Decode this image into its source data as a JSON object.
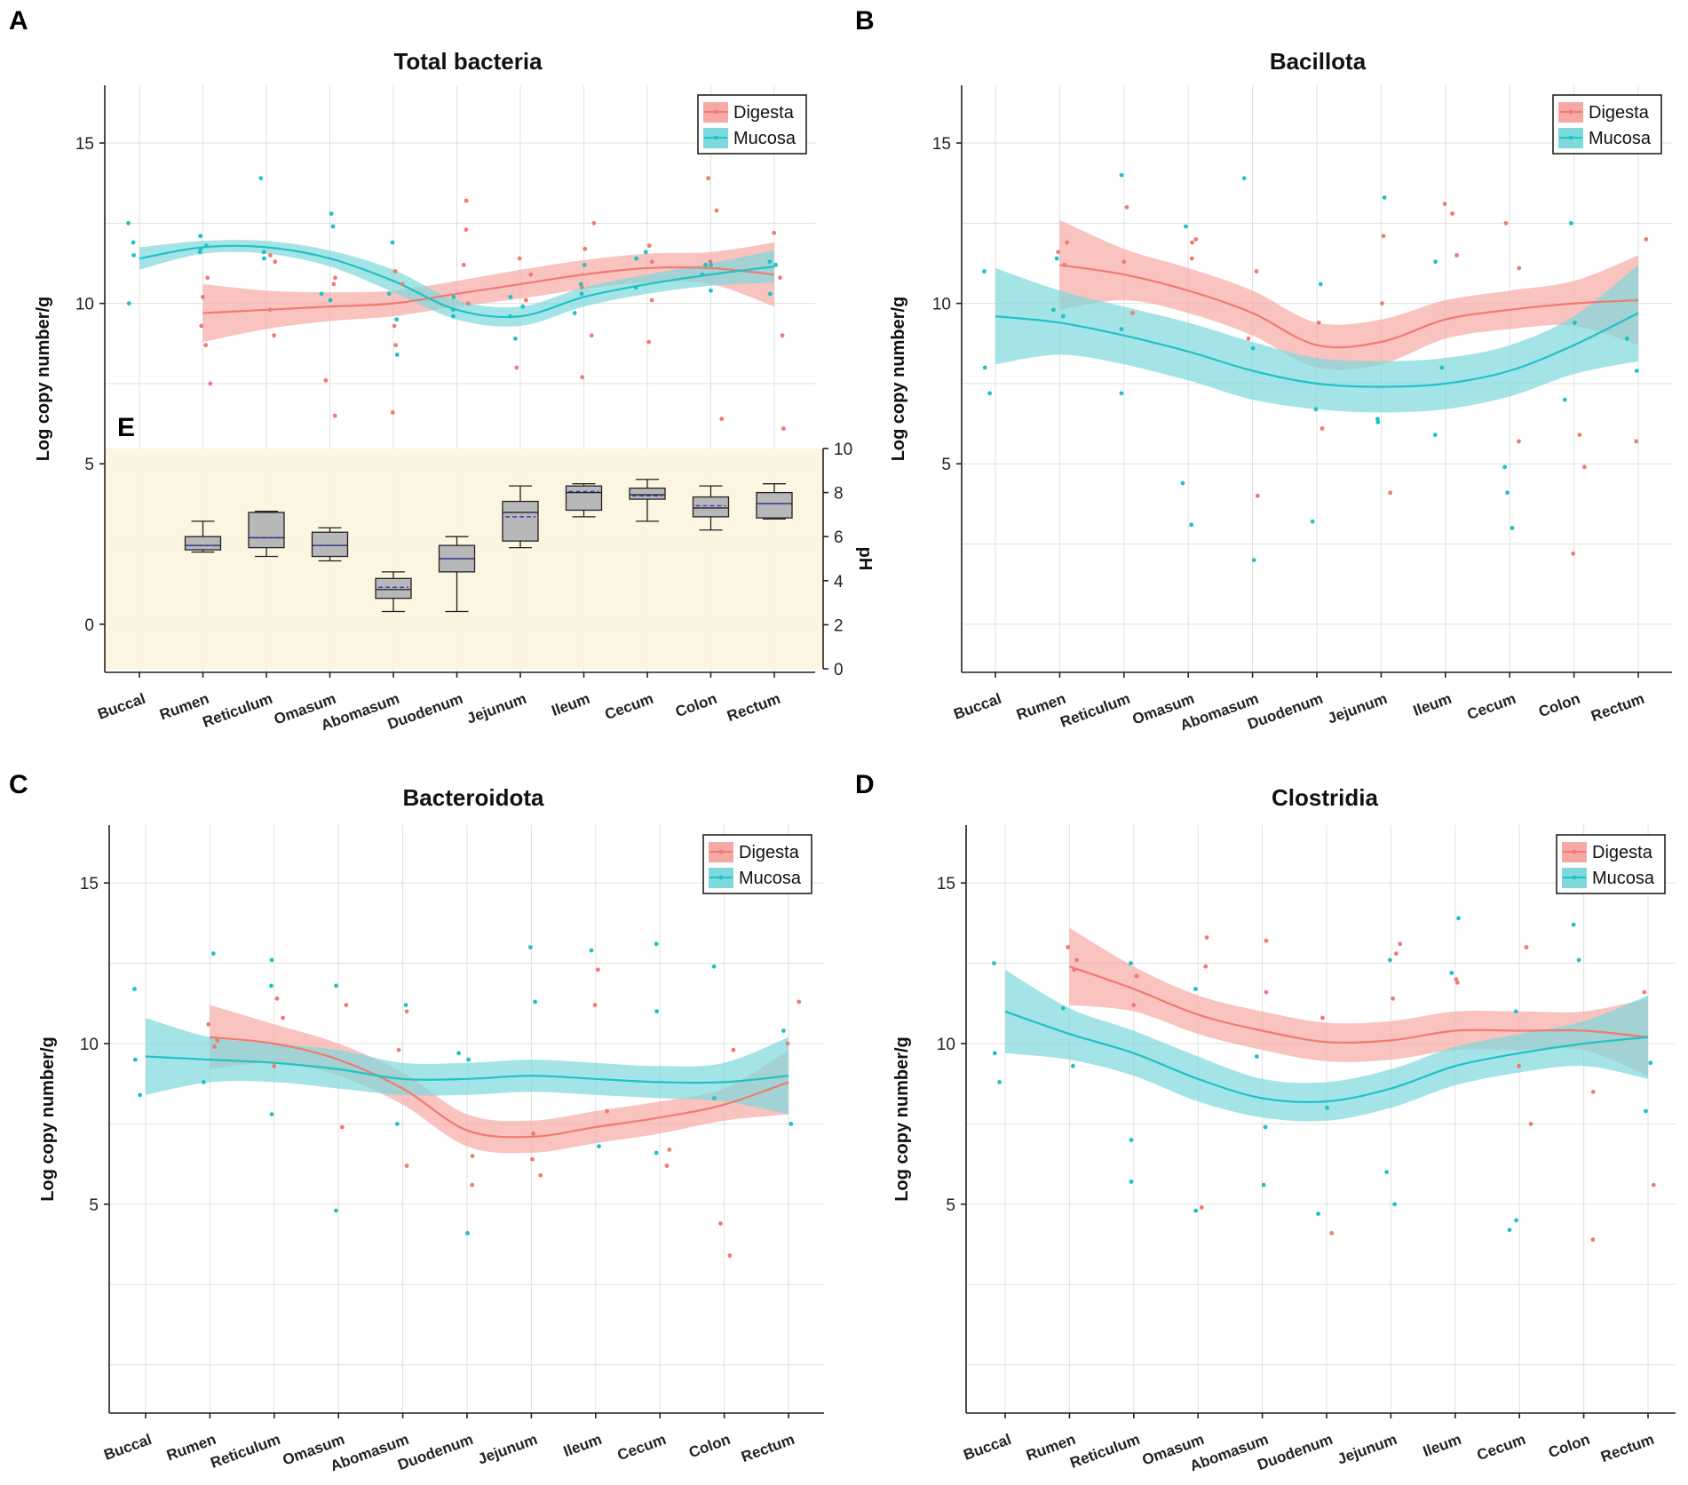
{
  "figure": {
    "categories": [
      "Buccal",
      "Rumen",
      "Reticulum",
      "Omasum",
      "Abomasum",
      "Duodenum",
      "Jejunum",
      "Ileum",
      "Cecum",
      "Colon",
      "Rectum"
    ],
    "ylabel": "Log copy number/g",
    "yticks": [
      0,
      5,
      10,
      15
    ],
    "legend": [
      "Digesta",
      "Mucosa"
    ],
    "colors": {
      "digesta": "#ef7b73",
      "mucosa": "#1fc2c6",
      "digesta_band": "#f6a9a4",
      "mucosa_band": "#7ed9dc",
      "ph_bg": "#fbf4df",
      "box_fill": "#b8b8b8",
      "mean_line": "#3a3ad0"
    }
  },
  "chart_data": [
    {
      "panel": "A",
      "type": "line",
      "title": "Total bacteria",
      "ylabel": "Log copy number/g",
      "ylim": [
        -1.5,
        16.8
      ],
      "yticks": [
        0,
        5,
        10,
        15
      ],
      "legend_position": "top-right",
      "series": [
        {
          "name": "Digesta",
          "x_start": 1,
          "values": [
            9.7,
            9.8,
            9.9,
            10.0,
            10.3,
            10.6,
            10.9,
            11.1,
            11.1,
            10.9
          ],
          "band_halfwidth": [
            0.9,
            0.6,
            0.45,
            0.4,
            0.4,
            0.45,
            0.45,
            0.45,
            0.5,
            1.0
          ],
          "points": [
            9.3,
            7.5,
            10.8,
            8.7,
            10.2,
            11.3,
            9.0,
            9.8,
            11.5,
            10.6,
            7.6,
            6.5,
            10.8,
            11.0,
            10.6,
            9.3,
            8.7,
            6.6,
            10.0,
            11.2,
            13.2,
            12.3,
            8.0,
            10.1,
            10.9,
            11.4,
            9.0,
            10.5,
            12.5,
            7.7,
            11.7,
            10.1,
            8.8,
            11.8,
            11.3,
            13.9,
            12.9,
            6.4,
            11.3,
            12.2,
            9.0,
            6.1,
            10.8
          ]
        },
        {
          "name": "Mucosa",
          "x_start": 0,
          "values": [
            11.4,
            11.75,
            11.75,
            11.4,
            10.7,
            9.8,
            9.6,
            10.2,
            10.6,
            10.9,
            11.15
          ],
          "band_halfwidth": [
            0.35,
            0.2,
            0.2,
            0.25,
            0.35,
            0.3,
            0.3,
            0.3,
            0.3,
            0.35,
            0.5
          ],
          "points": [
            12.5,
            10.0,
            11.5,
            11.9,
            11.8,
            11.6,
            12.1,
            11.7,
            11.4,
            11.6,
            13.9,
            12.4,
            12.8,
            10.3,
            10.1,
            11.9,
            8.4,
            10.3,
            9.5,
            9.6,
            10.2,
            9.8,
            10.2,
            9.6,
            8.9,
            9.9,
            10.3,
            9.7,
            10.6,
            11.2,
            10.5,
            11.6,
            11.4,
            11.2,
            10.9,
            11.2,
            10.4,
            11.2,
            10.3,
            11.3
          ]
        }
      ]
    },
    {
      "panel": "B",
      "type": "line",
      "title": "Bacillota",
      "ylabel": "Log copy number/g",
      "ylim": [
        -1.5,
        16.8
      ],
      "yticks": [
        5,
        10,
        15
      ],
      "legend_position": "top-right",
      "series": [
        {
          "name": "Digesta",
          "x_start": 1,
          "values": [
            11.2,
            10.9,
            10.4,
            9.7,
            8.7,
            8.8,
            9.5,
            9.8,
            10.0,
            10.1
          ],
          "band_halfwidth": [
            1.4,
            0.8,
            0.7,
            0.7,
            0.7,
            0.7,
            0.6,
            0.6,
            0.7,
            1.4
          ],
          "points": [
            11.6,
            11.9,
            11.2,
            13.0,
            11.3,
            9.7,
            12.0,
            11.4,
            11.9,
            11.0,
            8.9,
            4.0,
            6.1,
            9.4,
            4.1,
            10.0,
            12.1,
            13.1,
            11.5,
            12.8,
            11.1,
            5.7,
            12.5,
            5.9,
            4.9,
            2.2,
            12.0,
            5.7
          ]
        },
        {
          "name": "Mucosa",
          "x_start": 0,
          "values": [
            9.6,
            9.4,
            9.0,
            8.5,
            7.9,
            7.5,
            7.4,
            7.5,
            7.9,
            8.7,
            9.7
          ],
          "band_halfwidth": [
            1.5,
            1.0,
            0.9,
            0.9,
            0.9,
            0.8,
            0.8,
            0.8,
            0.8,
            0.9,
            1.5
          ],
          "points": [
            11.0,
            8.0,
            7.2,
            9.8,
            9.6,
            11.4,
            7.2,
            9.2,
            14.0,
            12.4,
            4.4,
            3.1,
            2.0,
            13.9,
            8.6,
            6.7,
            10.6,
            3.2,
            13.3,
            6.4,
            6.3,
            8.0,
            11.3,
            5.9,
            4.9,
            3.0,
            4.1,
            7.0,
            12.5,
            9.4,
            8.9,
            7.9
          ]
        }
      ]
    },
    {
      "panel": "C",
      "type": "line",
      "title": "Bacteroidota",
      "ylabel": "Log copy number/g",
      "ylim": [
        -1.5,
        16.8
      ],
      "yticks": [
        5,
        10,
        15
      ],
      "legend_position": "top-right",
      "series": [
        {
          "name": "Digesta",
          "x_start": 1,
          "values": [
            10.2,
            10.0,
            9.5,
            8.6,
            7.3,
            7.1,
            7.4,
            7.7,
            8.1,
            8.8
          ],
          "band_halfwidth": [
            1.0,
            0.6,
            0.5,
            0.5,
            0.5,
            0.5,
            0.5,
            0.5,
            0.5,
            1.0
          ],
          "points": [
            10.6,
            10.1,
            9.9,
            11.4,
            9.3,
            10.8,
            11.2,
            7.4,
            11.0,
            6.2,
            9.8,
            5.6,
            6.5,
            7.2,
            5.9,
            6.4,
            12.3,
            11.2,
            7.9,
            6.2,
            6.7,
            9.8,
            4.4,
            3.4,
            11.3,
            10.0
          ]
        },
        {
          "name": "Mucosa",
          "x_start": 0,
          "values": [
            9.6,
            9.5,
            9.4,
            9.2,
            8.9,
            8.9,
            9.0,
            8.9,
            8.8,
            8.8,
            9.0
          ],
          "band_halfwidth": [
            1.2,
            0.7,
            0.6,
            0.6,
            0.5,
            0.5,
            0.5,
            0.5,
            0.5,
            0.6,
            1.2
          ],
          "points": [
            11.7,
            9.5,
            8.4,
            8.8,
            12.8,
            11.8,
            7.8,
            12.6,
            11.8,
            4.8,
            7.5,
            11.2,
            9.5,
            9.7,
            4.1,
            13.0,
            11.3,
            12.9,
            6.8,
            13.1,
            11.0,
            6.6,
            8.3,
            12.4,
            10.4,
            7.5
          ]
        }
      ]
    },
    {
      "panel": "D",
      "type": "line",
      "title": "Clostridia",
      "ylabel": "Log copy number/g",
      "ylim": [
        -1.5,
        16.8
      ],
      "yticks": [
        5,
        10,
        15
      ],
      "legend_position": "top-right",
      "series": [
        {
          "name": "Digesta",
          "x_start": 1,
          "values": [
            12.4,
            11.7,
            10.9,
            10.4,
            10.05,
            10.1,
            10.4,
            10.4,
            10.4,
            10.2
          ],
          "band_halfwidth": [
            1.2,
            0.7,
            0.6,
            0.6,
            0.6,
            0.6,
            0.6,
            0.6,
            0.6,
            1.2
          ],
          "points": [
            13.0,
            12.6,
            12.3,
            12.1,
            11.2,
            13.3,
            12.4,
            4.9,
            13.2,
            11.6,
            10.8,
            4.1,
            12.8,
            11.4,
            13.1,
            12.0,
            11.9,
            9.3,
            7.5,
            13.0,
            8.5,
            3.9,
            11.6,
            5.6
          ]
        },
        {
          "name": "Mucosa",
          "x_start": 0,
          "values": [
            11.0,
            10.3,
            9.7,
            8.9,
            8.3,
            8.2,
            8.6,
            9.3,
            9.7,
            10.0,
            10.2
          ],
          "band_halfwidth": [
            1.3,
            0.8,
            0.7,
            0.7,
            0.6,
            0.6,
            0.6,
            0.6,
            0.6,
            0.7,
            1.3
          ],
          "points": [
            12.5,
            9.7,
            8.8,
            11.1,
            9.3,
            12.5,
            7.0,
            5.7,
            4.8,
            11.7,
            9.6,
            7.4,
            5.6,
            4.7,
            8.0,
            12.6,
            5.0,
            6.0,
            13.9,
            12.2,
            4.5,
            11.0,
            4.2,
            13.7,
            12.6,
            9.4,
            7.9
          ]
        }
      ]
    },
    {
      "panel": "E",
      "type": "box",
      "ylabel": "pH",
      "ylim": [
        0,
        10
      ],
      "yticks": [
        0,
        2,
        4,
        6,
        8,
        10
      ],
      "categories": [
        "Rumen",
        "Reticulum",
        "Omasum",
        "Abomasum",
        "Duodenum",
        "Jejunum",
        "Ileum",
        "Cecum",
        "Colon",
        "Rectum"
      ],
      "boxes": [
        {
          "min": 5.3,
          "q1": 5.4,
          "median": 5.6,
          "mean": 5.6,
          "q3": 6.0,
          "max": 6.7
        },
        {
          "min": 5.1,
          "q1": 5.5,
          "median": 5.95,
          "mean": 5.95,
          "q3": 7.1,
          "max": 7.15
        },
        {
          "min": 4.9,
          "q1": 5.1,
          "median": 5.6,
          "mean": 5.6,
          "q3": 6.2,
          "max": 6.4
        },
        {
          "min": 2.6,
          "q1": 3.2,
          "median": 3.6,
          "mean": 3.7,
          "q3": 4.1,
          "max": 4.4
        },
        {
          "min": 2.6,
          "q1": 4.4,
          "median": 5.0,
          "mean": 5.0,
          "q3": 5.6,
          "max": 6.0
        },
        {
          "min": 5.5,
          "q1": 5.8,
          "median": 7.1,
          "mean": 6.9,
          "q3": 7.6,
          "max": 8.3
        },
        {
          "min": 6.9,
          "q1": 7.2,
          "median": 8.0,
          "mean": 8.05,
          "q3": 8.3,
          "max": 8.4
        },
        {
          "min": 6.7,
          "q1": 7.7,
          "median": 7.9,
          "mean": 7.85,
          "q3": 8.2,
          "max": 8.6
        },
        {
          "min": 6.3,
          "q1": 6.9,
          "median": 7.3,
          "mean": 7.4,
          "q3": 7.8,
          "max": 8.3
        },
        {
          "min": 6.8,
          "q1": 6.85,
          "median": 7.5,
          "mean": 7.5,
          "q3": 8.0,
          "max": 8.4
        }
      ]
    }
  ],
  "panel_letters": {
    "a": "A",
    "b": "B",
    "c": "C",
    "d": "D",
    "e": "E"
  }
}
